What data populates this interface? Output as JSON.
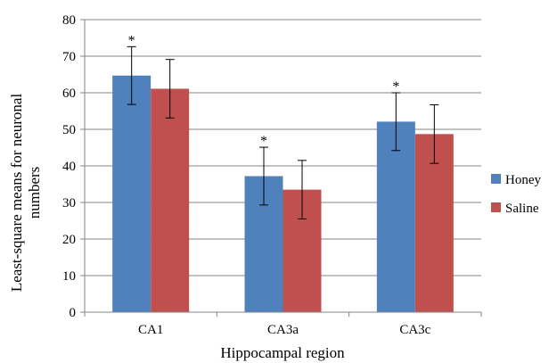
{
  "chart_data": {
    "type": "bar",
    "title": "",
    "xlabel": "Hippocampal region",
    "ylabel_lines": [
      "Least-square means for neuronal",
      "numbers"
    ],
    "categories": [
      "CA1",
      "CA3a",
      "CA3c"
    ],
    "ylim": [
      0,
      80
    ],
    "yticks": [
      0,
      10,
      20,
      30,
      40,
      50,
      60,
      70,
      80
    ],
    "grid": true,
    "legend_position": "right",
    "series": [
      {
        "name": "Honey",
        "color": "#4F81BD",
        "values": [
          64.7,
          37.2,
          52.1
        ],
        "error": [
          7.9,
          7.9,
          7.9
        ],
        "significance": [
          "*",
          "*",
          "*"
        ]
      },
      {
        "name": "Saline",
        "color": "#C0504D",
        "values": [
          61.1,
          33.5,
          48.7
        ],
        "error": [
          8.0,
          8.0,
          8.0
        ],
        "significance": [
          "",
          "",
          ""
        ]
      }
    ]
  }
}
